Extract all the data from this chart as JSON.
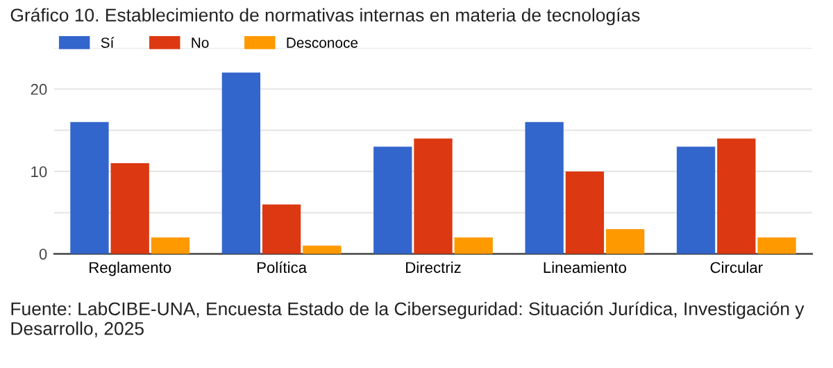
{
  "chart_data": {
    "type": "bar",
    "title": "Gráfico 10. Establecimiento de normativas internas en materia de tecnologías",
    "categories": [
      "Reglamento",
      "Política",
      "Directriz",
      "Lineamiento",
      "Circular"
    ],
    "series": [
      {
        "name": "Sí",
        "color": "#3366cc",
        "values": [
          16,
          22,
          13,
          16,
          13
        ]
      },
      {
        "name": "No",
        "color": "#dc3912",
        "values": [
          11,
          6,
          14,
          10,
          14
        ]
      },
      {
        "name": "Desconoce",
        "color": "#ff9900",
        "values": [
          2,
          1,
          2,
          3,
          2
        ]
      }
    ],
    "ylim": [
      0,
      25
    ],
    "yticks": [
      0,
      {
        "value": 5,
        "label": null
      },
      10,
      {
        "value": 15,
        "label": null
      },
      20,
      {
        "value": 25,
        "label": null
      }
    ],
    "grid": "y",
    "legend": "top left",
    "annotations": [
      "Fuente: LabCIBE-UNA, Encuesta Estado de la Ciberseguridad: Situación Jurídica, Investigación y Desarrollo, 2025"
    ]
  }
}
